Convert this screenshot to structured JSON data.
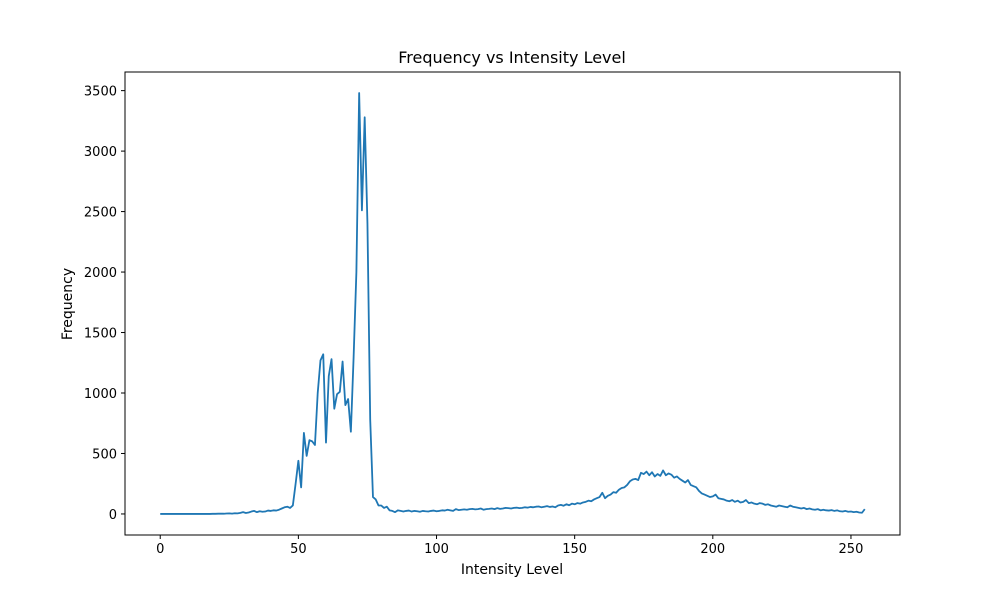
{
  "chart_data": {
    "type": "line",
    "title": "Frequency vs Intensity Level",
    "x_label": "Intensity Level",
    "y_label": "Frequency",
    "x": [
      0,
      1,
      2,
      3,
      4,
      5,
      6,
      7,
      8,
      9,
      10,
      11,
      12,
      13,
      14,
      15,
      16,
      17,
      18,
      19,
      20,
      21,
      22,
      23,
      24,
      25,
      26,
      27,
      28,
      29,
      30,
      31,
      32,
      33,
      34,
      35,
      36,
      37,
      38,
      39,
      40,
      41,
      42,
      43,
      44,
      45,
      46,
      47,
      48,
      49,
      50,
      51,
      52,
      53,
      54,
      55,
      56,
      57,
      58,
      59,
      60,
      61,
      62,
      63,
      64,
      65,
      66,
      67,
      68,
      69,
      70,
      71,
      72,
      73,
      74,
      75,
      76,
      77,
      78,
      79,
      80,
      81,
      82,
      83,
      84,
      85,
      86,
      87,
      88,
      89,
      90,
      91,
      92,
      93,
      94,
      95,
      96,
      97,
      98,
      99,
      100,
      101,
      102,
      103,
      104,
      105,
      106,
      107,
      108,
      109,
      110,
      111,
      112,
      113,
      114,
      115,
      116,
      117,
      118,
      119,
      120,
      121,
      122,
      123,
      124,
      125,
      126,
      127,
      128,
      129,
      130,
      131,
      132,
      133,
      134,
      135,
      136,
      137,
      138,
      139,
      140,
      141,
      142,
      143,
      144,
      145,
      146,
      147,
      148,
      149,
      150,
      151,
      152,
      153,
      154,
      155,
      156,
      157,
      158,
      159,
      160,
      161,
      162,
      163,
      164,
      165,
      166,
      167,
      168,
      169,
      170,
      171,
      172,
      173,
      174,
      175,
      176,
      177,
      178,
      179,
      180,
      181,
      182,
      183,
      184,
      185,
      186,
      187,
      188,
      189,
      190,
      191,
      192,
      193,
      194,
      195,
      196,
      197,
      198,
      199,
      200,
      201,
      202,
      203,
      204,
      205,
      206,
      207,
      208,
      209,
      210,
      211,
      212,
      213,
      214,
      215,
      216,
      217,
      218,
      219,
      220,
      221,
      222,
      223,
      224,
      225,
      226,
      227,
      228,
      229,
      230,
      231,
      232,
      233,
      234,
      235,
      236,
      237,
      238,
      239,
      240,
      241,
      242,
      243,
      244,
      245,
      246,
      247,
      248,
      249,
      250,
      251,
      252,
      253,
      254,
      255
    ],
    "series": [
      {
        "color": "#1f77b4",
        "values": [
          0,
          0,
          0,
          0,
          0,
          0,
          0,
          0,
          0,
          0,
          0,
          0,
          0,
          0,
          0,
          0,
          0,
          0,
          0,
          1,
          1,
          2,
          3,
          2,
          4,
          5,
          3,
          6,
          5,
          9,
          15,
          8,
          12,
          20,
          25,
          15,
          22,
          18,
          20,
          28,
          25,
          30,
          28,
          35,
          45,
          55,
          60,
          50,
          70,
          250,
          440,
          220,
          670,
          480,
          610,
          600,
          570,
          1000,
          1270,
          1320,
          590,
          1140,
          1280,
          870,
          990,
          1010,
          1260,
          900,
          950,
          680,
          1300,
          2000,
          3480,
          2510,
          3280,
          2400,
          780,
          140,
          120,
          70,
          70,
          50,
          60,
          30,
          25,
          15,
          30,
          25,
          20,
          25,
          28,
          20,
          25,
          22,
          18,
          25,
          22,
          20,
          25,
          28,
          22,
          25,
          30,
          28,
          35,
          30,
          25,
          40,
          32,
          35,
          38,
          35,
          40,
          42,
          38,
          40,
          45,
          35,
          40,
          42,
          45,
          40,
          48,
          42,
          45,
          50,
          48,
          45,
          50,
          52,
          48,
          50,
          55,
          52,
          58,
          55,
          60,
          62,
          55,
          60,
          65,
          58,
          62,
          55,
          70,
          75,
          68,
          80,
          72,
          85,
          80,
          90,
          85,
          95,
          100,
          110,
          105,
          120,
          130,
          140,
          175,
          130,
          150,
          160,
          180,
          175,
          200,
          215,
          220,
          240,
          270,
          285,
          290,
          280,
          340,
          330,
          350,
          320,
          345,
          310,
          330,
          315,
          360,
          320,
          335,
          325,
          300,
          310,
          290,
          275,
          260,
          280,
          240,
          230,
          220,
          190,
          170,
          160,
          150,
          140,
          145,
          160,
          130,
          125,
          120,
          110,
          105,
          115,
          100,
          110,
          95,
          100,
          115,
          90,
          95,
          85,
          80,
          90,
          85,
          75,
          80,
          70,
          65,
          60,
          70,
          65,
          60,
          55,
          70,
          60,
          55,
          50,
          45,
          50,
          40,
          45,
          38,
          35,
          40,
          30,
          35,
          30,
          28,
          32,
          25,
          30,
          22,
          20,
          25,
          18,
          20,
          15,
          18,
          12,
          10,
          40
        ]
      }
    ],
    "xlim": [
      -12.75,
      267.75
    ],
    "ylim": [
      -174,
      3654
    ],
    "xticks": [
      0,
      50,
      100,
      150,
      200,
      250
    ],
    "yticks": [
      0,
      500,
      1000,
      1500,
      2000,
      2500,
      3000,
      3500
    ]
  }
}
